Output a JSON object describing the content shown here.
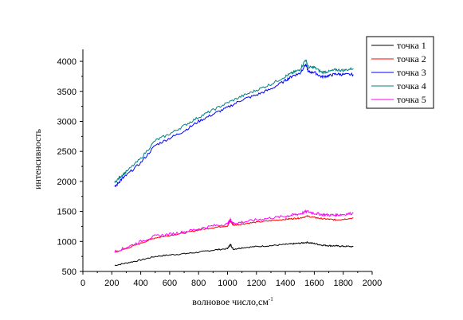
{
  "chart_data": {
    "type": "line",
    "title": "",
    "xlabel": "волновое число,см",
    "xlabel_superscript": "-1",
    "ylabel": "интенсивность",
    "xlim": [
      0,
      2000
    ],
    "ylim": [
      500,
      4200
    ],
    "xticks": [
      "0",
      "200",
      "400",
      "600",
      "800",
      "1000",
      "1200",
      "1400",
      "1600",
      "1800",
      "2000"
    ],
    "yticks": [
      "500",
      "1000",
      "1500",
      "2000",
      "2500",
      "3000",
      "3500",
      "4000"
    ],
    "grid": false,
    "legend_position": "top-right",
    "series": [
      {
        "name": "точка 1",
        "color": "#000000",
        "x": [
          220,
          300,
          400,
          500,
          600,
          700,
          800,
          900,
          1000,
          1020,
          1040,
          1100,
          1200,
          1300,
          1400,
          1450,
          1500,
          1550,
          1600,
          1650,
          1700,
          1750,
          1800,
          1870
        ],
        "y": [
          600,
          640,
          690,
          750,
          775,
          795,
          820,
          855,
          880,
          950,
          870,
          895,
          915,
          930,
          950,
          960,
          970,
          985,
          965,
          940,
          930,
          925,
          920,
          915
        ]
      },
      {
        "name": "точка 2",
        "color": "#ff0000",
        "x": [
          220,
          300,
          400,
          500,
          600,
          700,
          800,
          900,
          1000,
          1020,
          1040,
          1100,
          1200,
          1300,
          1400,
          1450,
          1500,
          1550,
          1600,
          1650,
          1700,
          1750,
          1800,
          1870
        ],
        "y": [
          820,
          880,
          970,
          1060,
          1100,
          1140,
          1190,
          1230,
          1260,
          1340,
          1270,
          1290,
          1320,
          1345,
          1370,
          1380,
          1390,
          1420,
          1400,
          1380,
          1370,
          1360,
          1370,
          1390
        ]
      },
      {
        "name": "точка 3",
        "color": "#0000ff",
        "x": [
          220,
          260,
          300,
          400,
          500,
          600,
          700,
          800,
          900,
          1000,
          1100,
          1200,
          1300,
          1400,
          1450,
          1500,
          1540,
          1560,
          1600,
          1650,
          1700,
          1750,
          1800,
          1870
        ],
        "y": [
          1900,
          2020,
          2100,
          2310,
          2600,
          2720,
          2840,
          3000,
          3120,
          3230,
          3360,
          3440,
          3540,
          3680,
          3760,
          3800,
          3950,
          3820,
          3820,
          3740,
          3760,
          3790,
          3780,
          3780
        ]
      },
      {
        "name": "точка 4",
        "color": "#008080",
        "x": [
          220,
          260,
          300,
          400,
          500,
          600,
          700,
          800,
          900,
          1000,
          1100,
          1200,
          1300,
          1400,
          1450,
          1500,
          1540,
          1560,
          1600,
          1650,
          1700,
          1750,
          1800,
          1870
        ],
        "y": [
          1980,
          2080,
          2160,
          2380,
          2680,
          2790,
          2930,
          3070,
          3190,
          3310,
          3420,
          3520,
          3620,
          3750,
          3810,
          3860,
          4030,
          3900,
          3900,
          3820,
          3830,
          3860,
          3850,
          3880
        ]
      },
      {
        "name": "точка 5",
        "color": "#ff00ff",
        "x": [
          220,
          300,
          400,
          500,
          600,
          700,
          800,
          900,
          1000,
          1020,
          1040,
          1100,
          1200,
          1300,
          1400,
          1450,
          1500,
          1550,
          1600,
          1650,
          1700,
          1750,
          1800,
          1870
        ],
        "y": [
          830,
          900,
          1000,
          1090,
          1120,
          1160,
          1210,
          1260,
          1290,
          1370,
          1300,
          1320,
          1360,
          1390,
          1420,
          1440,
          1460,
          1500,
          1470,
          1450,
          1440,
          1440,
          1450,
          1470
        ]
      }
    ]
  }
}
